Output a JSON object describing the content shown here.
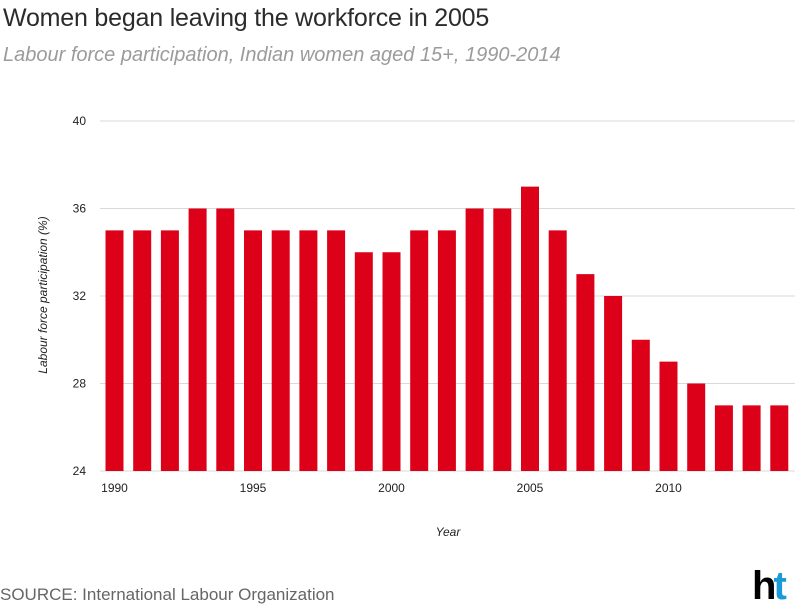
{
  "chart_data": {
    "type": "bar",
    "title": "Women began leaving the workforce in 2005",
    "subtitle": "Labour force participation, Indian women aged 15+, 1990-2014",
    "xlabel": "Year",
    "ylabel": "Labour force participation (%)",
    "ylim": [
      24,
      40
    ],
    "yticks": [
      24,
      28,
      32,
      36,
      40
    ],
    "xticks": [
      1990,
      1995,
      2000,
      2005,
      2010
    ],
    "grid": true,
    "bar_color": "#dc0019",
    "categories": [
      1990,
      1991,
      1992,
      1993,
      1994,
      1995,
      1996,
      1997,
      1998,
      1999,
      2000,
      2001,
      2002,
      2003,
      2004,
      2005,
      2006,
      2007,
      2008,
      2009,
      2010,
      2011,
      2012,
      2013,
      2014
    ],
    "values": [
      35,
      35,
      35,
      36,
      36,
      35,
      35,
      35,
      35,
      34,
      34,
      35,
      35,
      36,
      36,
      37,
      35,
      33,
      32,
      30,
      29,
      28,
      27,
      27,
      27
    ]
  },
  "footer": {
    "source": "SOURCE: International Labour Organization",
    "logo_h": "h",
    "logo_t": "t"
  }
}
